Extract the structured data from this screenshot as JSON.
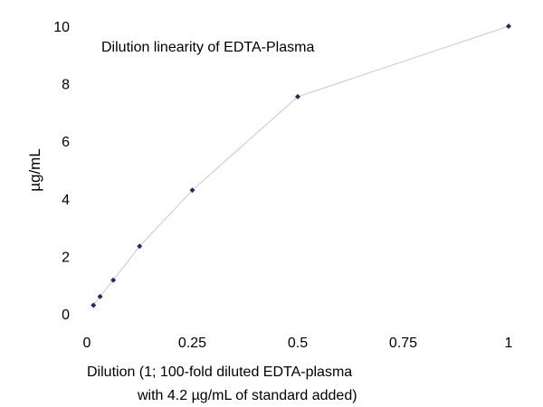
{
  "chart_data": {
    "type": "scatter",
    "title": "Dilution linearity of EDTA-Plasma",
    "xlabel_lines": [
      "Dilution (1; 100-fold diluted EDTA-plasma",
      "with 4.2 µg/mL of standard added)"
    ],
    "ylabel": "µg/mL",
    "xlim": [
      0,
      1
    ],
    "ylim": [
      0,
      10
    ],
    "x_ticks": [
      0,
      0.25,
      0.5,
      0.75,
      1
    ],
    "x_tick_labels": [
      "0",
      "0.25",
      "0.5",
      "0.75",
      "1"
    ],
    "y_ticks": [
      0,
      2,
      4,
      6,
      8,
      10
    ],
    "y_tick_labels": [
      "0",
      "2",
      "4",
      "6",
      "8",
      "10"
    ],
    "grid": false,
    "legend": "none",
    "series": [
      {
        "x": [
          0.0156,
          0.0313,
          0.0625,
          0.125,
          0.25,
          0.5,
          1
        ],
        "y": [
          0.3,
          0.6,
          1.17,
          2.35,
          4.3,
          7.55,
          10.0
        ],
        "marker_color": "#1f2d5a",
        "line_color": "#c8c8c8"
      }
    ]
  }
}
